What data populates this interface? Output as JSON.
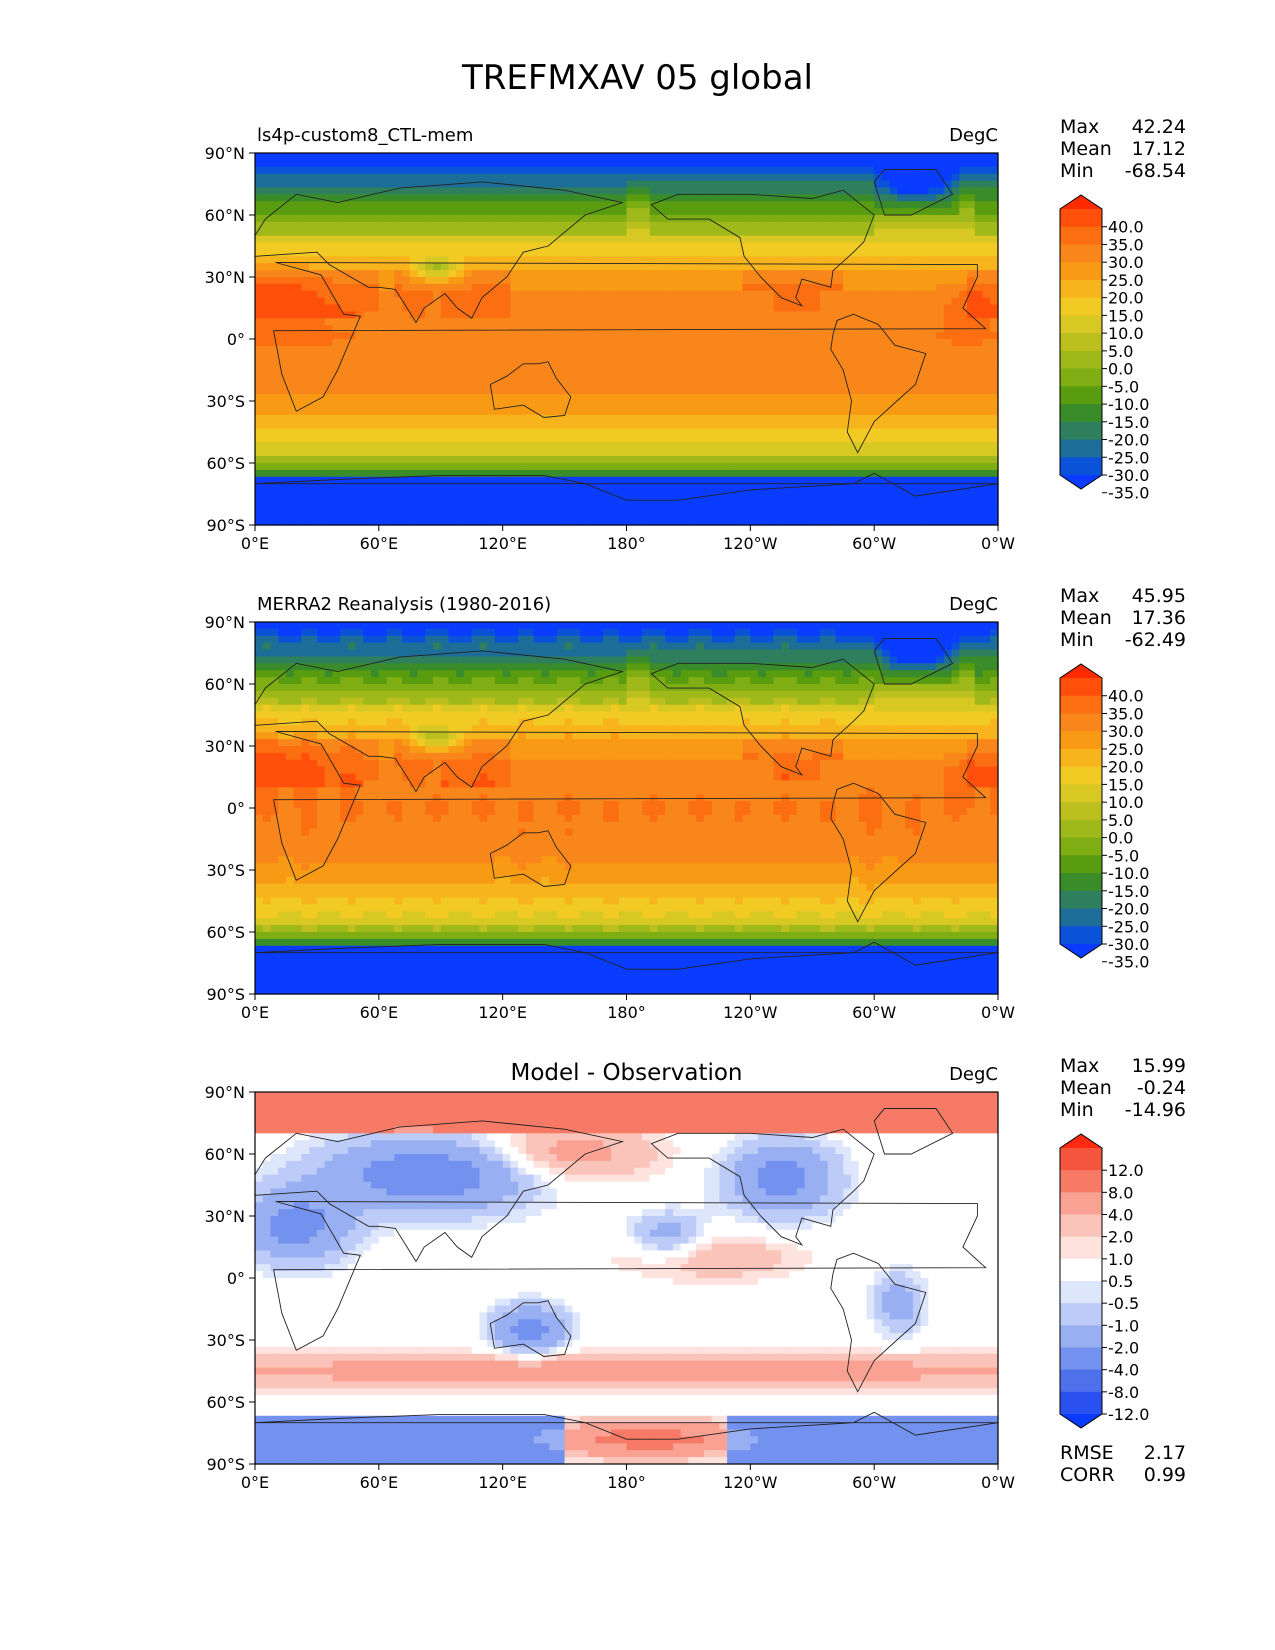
{
  "figure": {
    "title": "TREFMXAV 05 global"
  },
  "axes": {
    "x_ticks": [
      "0°E",
      "60°E",
      "120°E",
      "180°",
      "120°W",
      "60°W",
      "0°W"
    ],
    "y_ticks": [
      "90°N",
      "60°N",
      "30°N",
      "0°",
      "30°S",
      "60°S",
      "90°S"
    ]
  },
  "panels": [
    {
      "id": "model",
      "title": "ls4p-custom8_CTL-mem",
      "title_style": "left",
      "units": "DegC",
      "stats": [
        {
          "label": "Max",
          "value": "42.24"
        },
        {
          "label": "Mean",
          "value": "17.12"
        },
        {
          "label": "Min",
          "value": "-68.54"
        }
      ],
      "colorbar": {
        "labels": [
          "40.0",
          "35.0",
          "30.0",
          "25.0",
          "20.0",
          "15.0",
          "10.0",
          "5.0",
          "0.0",
          "-5.0",
          "-10.0",
          "-15.0",
          "-20.0",
          "-25.0",
          "-30.0",
          "-35.0"
        ],
        "colors": [
          "#ff2a00",
          "#ff4f0a",
          "#fb6e12",
          "#f9861a",
          "#f99a14",
          "#f8b41c",
          "#f1cb24",
          "#d8c824",
          "#bcc01e",
          "#9fb81a",
          "#7fae14",
          "#5a9c10",
          "#3a8c2a",
          "#2f7f5f",
          "#1c6e98",
          "#0a52d8",
          "#0a3cff"
        ]
      },
      "map_type": "temperature"
    },
    {
      "id": "obs",
      "title": "MERRA2 Reanalysis (1980-2016)",
      "title_style": "left",
      "units": "DegC",
      "stats": [
        {
          "label": "Max",
          "value": "45.95"
        },
        {
          "label": "Mean",
          "value": "17.36"
        },
        {
          "label": "Min",
          "value": "-62.49"
        }
      ],
      "colorbar": {
        "labels": [
          "40.0",
          "35.0",
          "30.0",
          "25.0",
          "20.0",
          "15.0",
          "10.0",
          "5.0",
          "0.0",
          "-5.0",
          "-10.0",
          "-15.0",
          "-20.0",
          "-25.0",
          "-30.0",
          "-35.0"
        ],
        "colors": [
          "#ff2a00",
          "#ff4f0a",
          "#fb6e12",
          "#f9861a",
          "#f99a14",
          "#f8b41c",
          "#f1cb24",
          "#d8c824",
          "#bcc01e",
          "#9fb81a",
          "#7fae14",
          "#5a9c10",
          "#3a8c2a",
          "#2f7f5f",
          "#1c6e98",
          "#0a52d8",
          "#0a3cff"
        ]
      },
      "map_type": "temperature"
    },
    {
      "id": "diff",
      "title": "Model - Observation",
      "title_style": "center",
      "units": "DegC",
      "stats": [
        {
          "label": "Max",
          "value": "15.99"
        },
        {
          "label": "Mean",
          "value": "-0.24"
        },
        {
          "label": "Min",
          "value": "-14.96"
        }
      ],
      "extra_stats": [
        {
          "label": "RMSE",
          "value": "2.17"
        },
        {
          "label": "CORR",
          "value": "0.99"
        }
      ],
      "colorbar": {
        "labels": [
          "12.0",
          "8.0",
          "4.0",
          "2.0",
          "1.0",
          "0.5",
          "-0.5",
          "-1.0",
          "-2.0",
          "-4.0",
          "-8.0",
          "-12.0"
        ],
        "colors": [
          "#ff2a10",
          "#f4553c",
          "#f67a66",
          "#f9a293",
          "#fbc4ba",
          "#fde2dd",
          "#ffffff",
          "#dde6fb",
          "#bccbf7",
          "#98aff2",
          "#7391ee",
          "#4e70ea",
          "#2a50f0",
          "#0a3cff"
        ]
      },
      "map_type": "difference"
    }
  ]
}
